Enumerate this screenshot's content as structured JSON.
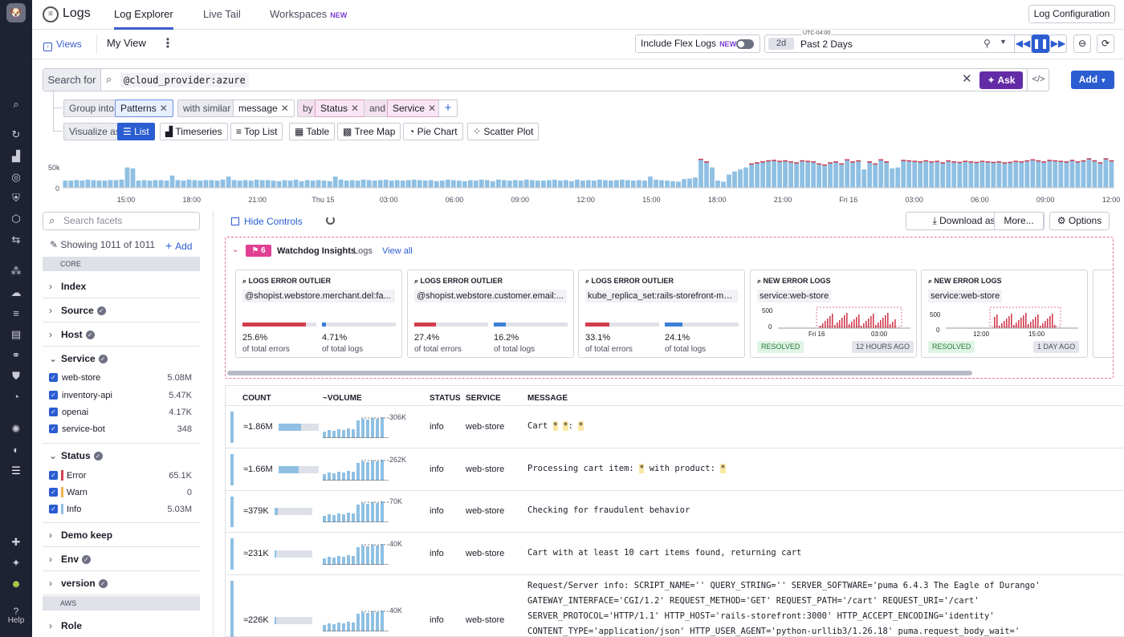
{
  "nav": {
    "help_label": "Help"
  },
  "header": {
    "app_title": "Logs",
    "tabs": [
      {
        "label": "Log Explorer"
      },
      {
        "label": "Live Tail"
      },
      {
        "label": "Workspaces"
      }
    ],
    "new_tag": "NEW",
    "log_config": "Log Configuration"
  },
  "subbar": {
    "views": "Views",
    "my_view": "My View",
    "flex_logs": "Include Flex Logs",
    "flex_new": "NEW",
    "time_short": "2d",
    "timezone": "UTC-04:00",
    "time_range": "Past 2 Days"
  },
  "search": {
    "label": "Search for",
    "query": "@cloud_provider:azure",
    "ask": "Ask",
    "add": "Add"
  },
  "group": {
    "group_into": "Group into",
    "patterns": "Patterns",
    "with_similar": "with similar",
    "message": "message",
    "by": "by",
    "status": "Status",
    "and": "and",
    "service": "Service"
  },
  "visualize": {
    "label": "Visualize as",
    "options": [
      "List",
      "Timeseries",
      "Top List",
      "Table",
      "Tree Map",
      "Pie Chart",
      "Scatter Plot"
    ]
  },
  "chart_data": {
    "type": "bar",
    "yticks": [
      "50k",
      "0"
    ],
    "xticks": [
      "15:00",
      "18:00",
      "21:00",
      "Thu 15",
      "03:00",
      "06:00",
      "09:00",
      "12:00",
      "15:00",
      "18:00",
      "21:00",
      "Fri 16",
      "03:00",
      "06:00",
      "09:00",
      "12:00"
    ],
    "values": [
      14,
      14,
      15,
      14,
      16,
      15,
      14,
      14,
      15,
      15,
      16,
      40,
      38,
      14,
      15,
      14,
      15,
      15,
      14,
      24,
      15,
      14,
      16,
      15,
      14,
      15,
      15,
      14,
      16,
      22,
      15,
      14,
      15,
      14,
      16,
      15,
      15,
      14,
      13,
      15,
      14,
      16,
      13,
      15,
      14,
      15,
      14,
      13,
      22,
      16,
      14,
      15,
      14,
      16,
      15,
      14,
      15,
      16,
      14,
      15,
      14,
      15,
      16,
      15,
      14,
      15,
      13,
      14,
      16,
      15,
      14,
      13,
      15,
      14,
      16,
      15,
      13,
      16,
      15,
      14,
      15,
      14,
      16,
      15,
      14,
      14,
      15,
      16,
      14,
      15,
      13,
      16,
      14,
      15,
      14,
      16,
      15,
      14,
      15,
      16,
      15,
      14,
      15,
      14,
      22,
      16,
      15,
      14,
      13,
      12,
      17,
      18,
      20,
      57,
      52,
      40,
      14,
      12,
      26,
      32,
      36,
      40,
      48,
      50,
      52,
      54,
      55,
      53,
      54,
      52,
      50,
      54,
      53,
      52,
      48,
      46,
      50,
      52,
      48,
      56,
      52,
      54,
      36,
      52,
      48,
      56,
      52,
      38,
      40,
      55,
      54,
      53,
      52,
      54,
      52,
      53,
      50,
      54,
      52,
      51,
      53,
      52,
      51,
      53,
      52,
      51,
      52,
      50,
      51,
      53,
      52,
      54,
      56,
      54,
      52,
      55,
      54,
      53,
      52,
      55,
      52,
      54,
      58,
      54,
      50,
      58,
      54
    ]
  },
  "controls": {
    "hide": "Hide Controls",
    "download": "Download as CSV",
    "more": "More...",
    "options": "Options"
  },
  "facets": {
    "search_placeholder": "Search facets",
    "showing": "Showing 1011 of 1011",
    "add": "Add",
    "core": "CORE",
    "aws": "AWS",
    "groups": [
      "Index",
      "Source",
      "Host",
      "Service",
      "Status",
      "Demo keep",
      "Env",
      "version",
      "Role"
    ],
    "service_items": [
      {
        "name": "web-store",
        "count": "5.08M"
      },
      {
        "name": "inventory-api",
        "count": "5.47K"
      },
      {
        "name": "openai",
        "count": "4.17K"
      },
      {
        "name": "service-bot",
        "count": "348"
      }
    ],
    "status_items": [
      {
        "name": "Error",
        "count": "65.1K",
        "color": "#d33d4e"
      },
      {
        "name": "Warn",
        "count": "0",
        "color": "#e9b54a"
      },
      {
        "name": "Info",
        "count": "5.03M",
        "color": "#8fc0e3"
      }
    ]
  },
  "watchdog": {
    "count": "6",
    "title": "Watchdog Insights",
    "subtitle": "Logs",
    "view_all": "View all",
    "cards": [
      {
        "title": "LOGS ERROR OUTLIER",
        "sub": "@shopist.webstore.merchant.del:fa...",
        "p1": "25.6%",
        "l1": "of total errors",
        "p2": "4.71%",
        "l2": "of total logs",
        "f1": 0.86,
        "f2": 0.05
      },
      {
        "title": "LOGS ERROR OUTLIER",
        "sub": "@shopist.webstore.customer.email:...",
        "p1": "27.4%",
        "l1": "of total errors",
        "p2": "16.2%",
        "l2": "of total logs",
        "f1": 0.29,
        "f2": 0.16
      },
      {
        "title": "LOGS ERROR OUTLIER",
        "sub": "kube_replica_set:rails-storefront-ma...",
        "p1": "33.1%",
        "l1": "of total errors",
        "p2": "24.1%",
        "l2": "of total logs",
        "f1": 0.33,
        "f2": 0.24
      },
      {
        "title": "NEW ERROR LOGS",
        "sub": "service:web-store",
        "y": [
          "500",
          "0"
        ],
        "x": [
          "Fri 16",
          "03:00"
        ],
        "status": "RESOLVED",
        "ago": "12 HOURS AGO"
      },
      {
        "title": "NEW ERROR LOGS",
        "sub": "service:web-store",
        "y": [
          "500",
          "0"
        ],
        "x": [
          "12:00",
          "15:00"
        ],
        "status": "RESOLVED",
        "ago": "1 DAY AGO"
      }
    ]
  },
  "table": {
    "headers": [
      "COUNT",
      "~VOLUME",
      "STATUS",
      "SERVICE",
      "MESSAGE"
    ],
    "rows": [
      {
        "count": "≈1.86M",
        "vol": 0.55,
        "max": "306K",
        "status": "info",
        "service": "web-store"
      },
      {
        "count": "≈1.66M",
        "vol": 0.5,
        "max": "262K",
        "status": "info",
        "service": "web-store"
      },
      {
        "count": "≈379K",
        "vol": 0.08,
        "max": "70K",
        "status": "info",
        "service": "web-store",
        "msg": "Checking for fraudulent behavior"
      },
      {
        "count": "≈231K",
        "vol": 0.05,
        "max": "40K",
        "status": "info",
        "service": "web-store",
        "msg": "Cart with at least 10 cart items found, returning cart"
      },
      {
        "count": "≈226K",
        "vol": 0.05,
        "max": "40K",
        "status": "info",
        "service": "web-store",
        "msg": "Request/Server info: SCRIPT_NAME='' QUERY_STRING='' SERVER_SOFTWARE='puma 6.4.3 The Eagle of Durango'\nGATEWAY_INTERFACE='CGI/1.2' REQUEST_METHOD='GET' REQUEST_PATH='/cart' REQUEST_URI='/cart'\nSERVER_PROTOCOL='HTTP/1.1' HTTP_HOST='rails-storefront:3000' HTTP_ACCEPT_ENCODING='identity'\nCONTENT_TYPE='application/json' HTTP_USER_AGENT='python-urllib3/1.26.18' puma.request_body_wait='"
      }
    ],
    "msg1": {
      "a": "Cart ",
      "w": "*",
      "b": " ",
      "c": ": "
    },
    "msg2": {
      "a": "Processing cart item: ",
      "w": "*",
      "b": " with product: "
    }
  }
}
